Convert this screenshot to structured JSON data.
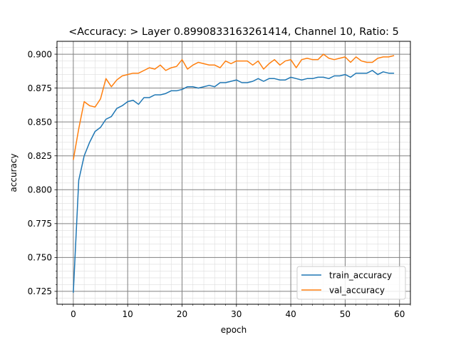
{
  "chart_data": {
    "type": "line",
    "title": "<Accuracy: > Layer 0.8990833163261414, Channel 10, Ratio: 5",
    "xlabel": "epoch",
    "ylabel": "accuracy",
    "xlim": [
      -3,
      62
    ],
    "ylim": [
      0.7155,
      0.9095
    ],
    "xticks": [
      0,
      10,
      20,
      30,
      40,
      50,
      60
    ],
    "xtick_labels": [
      "0",
      "10",
      "20",
      "30",
      "40",
      "50",
      "60"
    ],
    "yticks": [
      0.725,
      0.75,
      0.775,
      0.8,
      0.825,
      0.85,
      0.875,
      0.9
    ],
    "ytick_labels": [
      "0.725",
      "0.750",
      "0.775",
      "0.800",
      "0.825",
      "0.850",
      "0.875",
      "0.900"
    ],
    "grid": true,
    "minor_grid": true,
    "legend_position": "lower-right",
    "series": [
      {
        "name": "train_accuracy",
        "color": "#1f77b4",
        "x": [
          0,
          1,
          2,
          3,
          4,
          5,
          6,
          7,
          8,
          9,
          10,
          11,
          12,
          13,
          14,
          15,
          16,
          17,
          18,
          19,
          20,
          21,
          22,
          23,
          24,
          25,
          26,
          27,
          28,
          29,
          30,
          31,
          32,
          33,
          34,
          35,
          36,
          37,
          38,
          39,
          40,
          41,
          42,
          43,
          44,
          45,
          46,
          47,
          48,
          49,
          50,
          51,
          52,
          53,
          54,
          55,
          56,
          57,
          58,
          59
        ],
        "values": [
          0.724,
          0.807,
          0.825,
          0.835,
          0.843,
          0.846,
          0.852,
          0.854,
          0.86,
          0.862,
          0.865,
          0.866,
          0.863,
          0.868,
          0.868,
          0.87,
          0.87,
          0.871,
          0.873,
          0.873,
          0.874,
          0.876,
          0.876,
          0.875,
          0.876,
          0.877,
          0.876,
          0.879,
          0.879,
          0.88,
          0.881,
          0.879,
          0.879,
          0.88,
          0.882,
          0.88,
          0.882,
          0.882,
          0.881,
          0.881,
          0.883,
          0.882,
          0.881,
          0.882,
          0.882,
          0.883,
          0.883,
          0.882,
          0.884,
          0.884,
          0.885,
          0.883,
          0.886,
          0.886,
          0.886,
          0.888,
          0.885,
          0.887,
          0.886,
          0.886
        ]
      },
      {
        "name": "val_accuracy",
        "color": "#ff7f0e",
        "x": [
          0,
          1,
          2,
          3,
          4,
          5,
          6,
          7,
          8,
          9,
          10,
          11,
          12,
          13,
          14,
          15,
          16,
          17,
          18,
          19,
          20,
          21,
          22,
          23,
          24,
          25,
          26,
          27,
          28,
          29,
          30,
          31,
          32,
          33,
          34,
          35,
          36,
          37,
          38,
          39,
          40,
          41,
          42,
          43,
          44,
          45,
          46,
          47,
          48,
          49,
          50,
          51,
          52,
          53,
          54,
          55,
          56,
          57,
          58,
          59
        ],
        "values": [
          0.822,
          0.845,
          0.865,
          0.862,
          0.861,
          0.867,
          0.882,
          0.876,
          0.881,
          0.884,
          0.885,
          0.886,
          0.886,
          0.888,
          0.89,
          0.889,
          0.892,
          0.888,
          0.89,
          0.891,
          0.896,
          0.889,
          0.892,
          0.894,
          0.893,
          0.892,
          0.892,
          0.89,
          0.895,
          0.893,
          0.895,
          0.895,
          0.895,
          0.892,
          0.895,
          0.889,
          0.893,
          0.896,
          0.892,
          0.895,
          0.896,
          0.89,
          0.896,
          0.897,
          0.896,
          0.896,
          0.9,
          0.897,
          0.896,
          0.897,
          0.898,
          0.894,
          0.898,
          0.895,
          0.894,
          0.894,
          0.897,
          0.898,
          0.898,
          0.899
        ]
      }
    ]
  }
}
